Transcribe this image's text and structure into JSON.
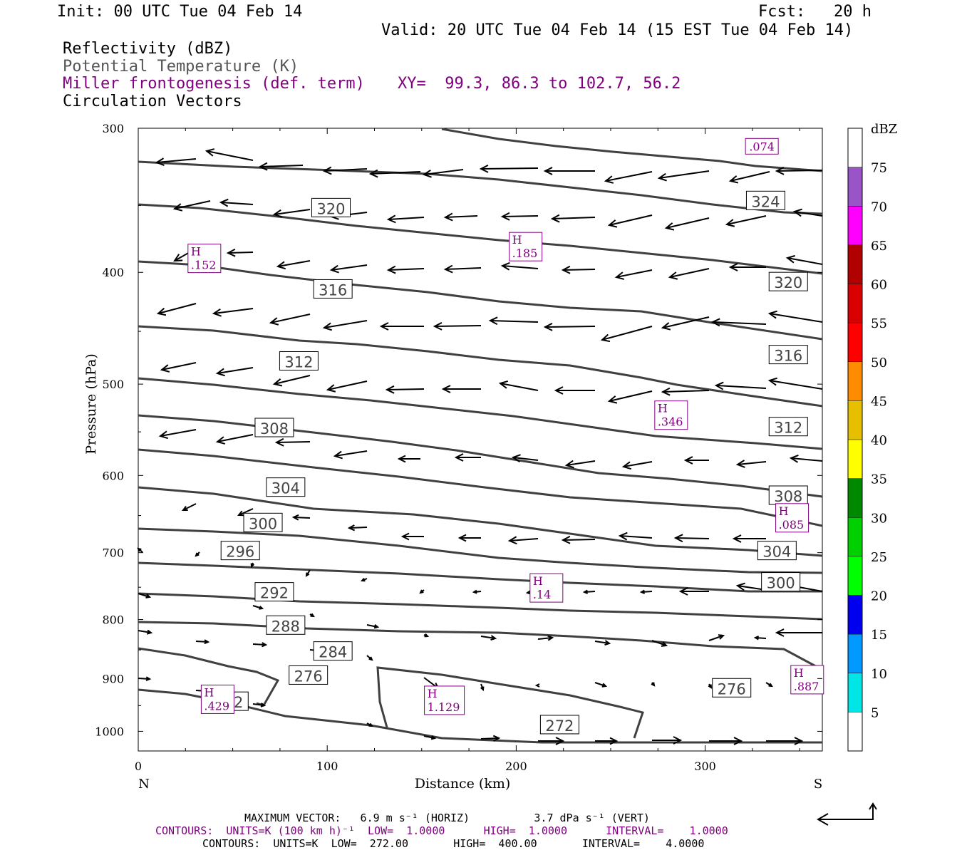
{
  "header": {
    "init": "Init: 00 UTC Tue 04 Feb 14",
    "fcst": "Fcst:   20 h",
    "valid": "Valid: 20 UTC Tue 04 Feb 14 (15 EST Tue 04 Feb 14)"
  },
  "legend": {
    "line1": "Reflectivity (dBZ)",
    "line2": "Potential Temperature (K)",
    "line3": "Miller frontogenesis (def. term)",
    "xy": "XY=  99.3, 86.3 to 102.7, 56.2",
    "line4": "Circulation Vectors"
  },
  "colors": {
    "theta": "#404040",
    "fronto": "#800080",
    "vector": "#000000"
  },
  "chart_data": {
    "type": "cross-section",
    "title": "",
    "xlabel": "Distance (km)",
    "ylabel": "Pressure (hPa)",
    "x_range": [
      0,
      362
    ],
    "y_range_hpa": [
      1040,
      300
    ],
    "x_ticks": [
      0,
      100,
      200,
      300
    ],
    "y_ticks": [
      300,
      400,
      500,
      600,
      700,
      800,
      900,
      1000
    ],
    "x_end_labels": {
      "left": "N",
      "right": "S"
    },
    "y_scale": "log",
    "potential_temperature_labels": [
      {
        "v": "320",
        "x": 102,
        "p": 352
      },
      {
        "v": "324",
        "x": 332,
        "p": 347
      },
      {
        "v": "316",
        "x": 103,
        "p": 414
      },
      {
        "v": "320",
        "x": 344,
        "p": 408
      },
      {
        "v": "312",
        "x": 85,
        "p": 478
      },
      {
        "v": "316",
        "x": 344,
        "p": 472
      },
      {
        "v": "308",
        "x": 72,
        "p": 546
      },
      {
        "v": "312",
        "x": 344,
        "p": 545
      },
      {
        "v": "304",
        "x": 78,
        "p": 615
      },
      {
        "v": "308",
        "x": 344,
        "p": 625
      },
      {
        "v": "300",
        "x": 66,
        "p": 660
      },
      {
        "v": "296",
        "x": 54,
        "p": 698
      },
      {
        "v": "304",
        "x": 338,
        "p": 698
      },
      {
        "v": "300",
        "x": 340,
        "p": 743
      },
      {
        "v": "292",
        "x": 72,
        "p": 758
      },
      {
        "v": "288",
        "x": 78,
        "p": 810
      },
      {
        "v": "284",
        "x": 103,
        "p": 853
      },
      {
        "v": "276",
        "x": 90,
        "p": 895
      },
      {
        "v": "276",
        "x": 314,
        "p": 918
      },
      {
        "v": "272",
        "x": 48,
        "p": 943
      },
      {
        "v": "272",
        "x": 223,
        "p": 988
      }
    ],
    "frontogenesis_maxima": [
      {
        "label": "H",
        "value": ".152",
        "x": 35,
        "p": 389
      },
      {
        "label": "H",
        "value": ".185",
        "x": 205,
        "p": 380
      },
      {
        "label": "H",
        "value": ".346",
        "x": 282,
        "p": 532
      },
      {
        "label": "H",
        "value": ".085",
        "x": 346,
        "p": 653
      },
      {
        "label": "H",
        "value": ".14",
        "x": 216,
        "p": 751
      },
      {
        "label": "H",
        "value": ".429",
        "x": 42,
        "p": 938
      },
      {
        "label": "H",
        "value": "1.129",
        "x": 162,
        "p": 940
      },
      {
        "label": "H",
        "value": ".887",
        "x": 354,
        "p": 902
      },
      {
        "label": "",
        "value": ".074",
        "x": 330,
        "p": 311
      }
    ],
    "colorbar": {
      "title": "dBZ",
      "levels": [
        5,
        10,
        15,
        20,
        25,
        30,
        35,
        40,
        45,
        50,
        55,
        60,
        65,
        70,
        75
      ],
      "colors": [
        "#ffffff",
        "#00e5e5",
        "#0099ff",
        "#0000ee",
        "#00ff00",
        "#00d000",
        "#008800",
        "#ffff00",
        "#e6bf00",
        "#ff8c00",
        "#ff0000",
        "#d80000",
        "#b00000",
        "#ff00ff",
        "#9955c8",
        "#ffffff"
      ]
    }
  },
  "footer": {
    "max_vector": "MAXIMUM VECTOR:   6.9 m s⁻¹ (HORIZ)          3.7 dPa s⁻¹ (VERT)",
    "contours_fronto": "CONTOURS:  UNITS=K (100 km h)⁻¹  LOW=  1.0000      HIGH=  1.0000      INTERVAL=    1.0000",
    "contours_theta": "CONTOURS:  UNITS=K  LOW=  272.00       HIGH=  400.00       INTERVAL=    4.0000"
  }
}
